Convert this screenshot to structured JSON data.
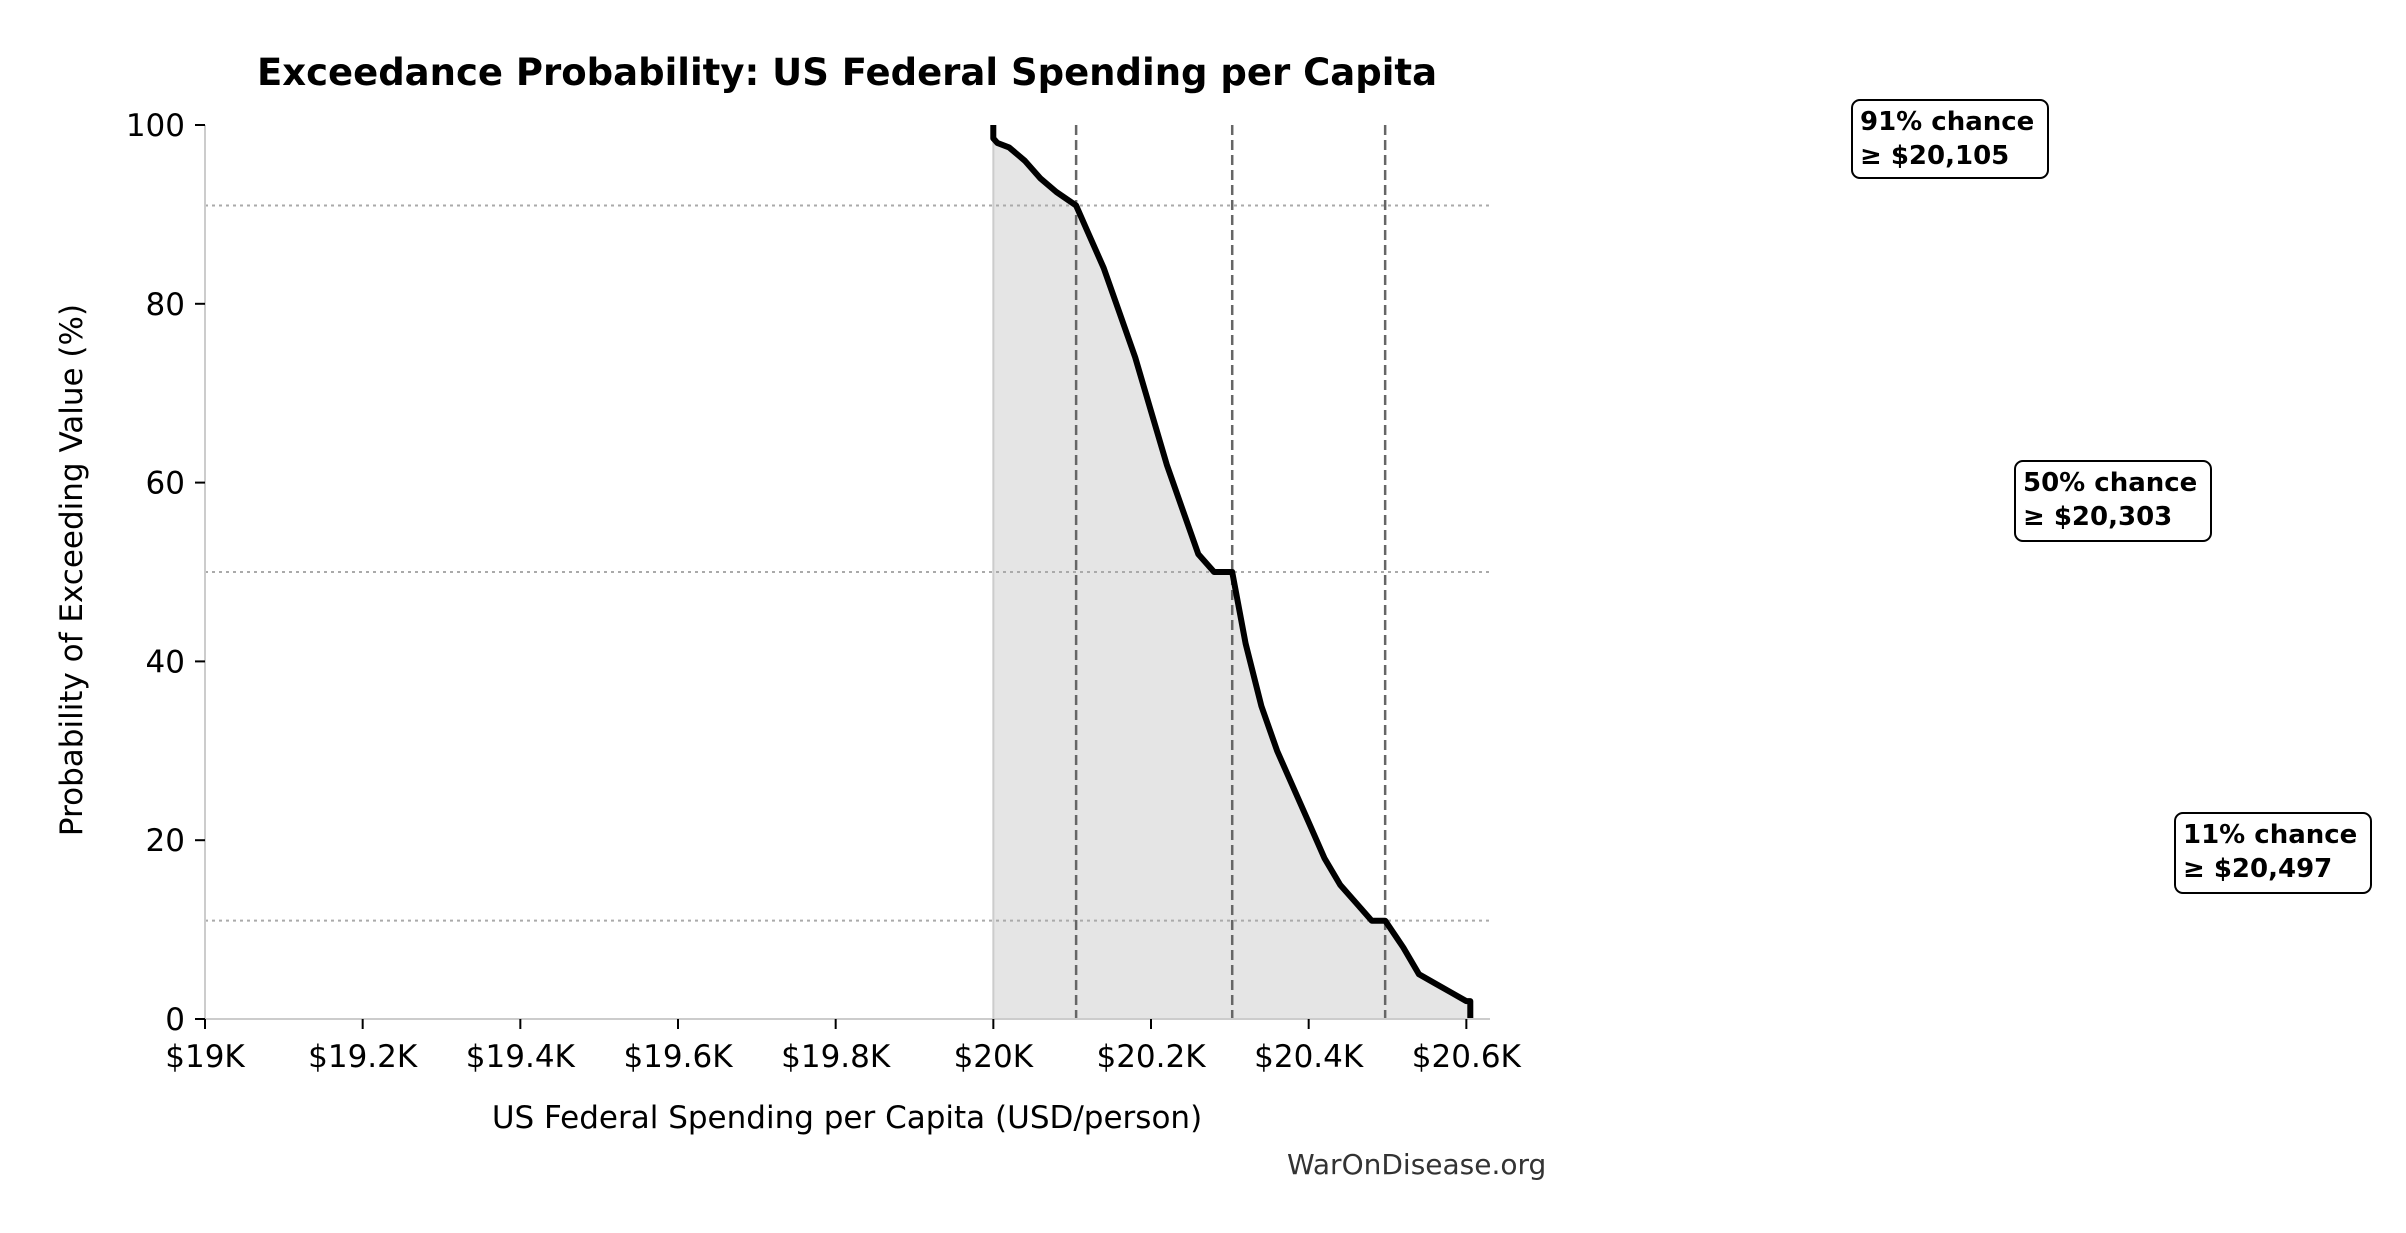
{
  "chart_data": {
    "type": "area",
    "title": "Exceedance Probability: US Federal Spending per Capita",
    "xlabel": "US Federal Spending per Capita (USD/person)",
    "ylabel": "Probability of Exceeding Value (%)",
    "xlim": [
      19000,
      20630
    ],
    "ylim": [
      0,
      100
    ],
    "x_ticks": [
      19000,
      19200,
      19400,
      19600,
      19800,
      20000,
      20200,
      20400,
      20600
    ],
    "x_tick_labels": [
      "$19K",
      "$19.2K",
      "$19.4K",
      "$19.6K",
      "$19.8K",
      "$20K",
      "$20.2K",
      "$20.4K",
      "$20.6K"
    ],
    "y_ticks": [
      0,
      20,
      40,
      60,
      80,
      100
    ],
    "y_tick_labels": [
      "0",
      "20",
      "40",
      "60",
      "80",
      "100"
    ],
    "grid": false,
    "curve_color": "#000000",
    "fill_color": "#e5e5e5",
    "series": [
      {
        "x": [
          20000,
          20000,
          20005,
          20020,
          20040,
          20060,
          20080,
          20105,
          20120,
          20140,
          20160,
          20180,
          20200,
          20220,
          20240,
          20260,
          20280,
          20303,
          20320,
          20340,
          20360,
          20380,
          20400,
          20420,
          20440,
          20460,
          20480,
          20497,
          20520,
          20540,
          20560,
          20580,
          20600,
          20605,
          20605
        ],
        "y": [
          100,
          98.5,
          98,
          97.5,
          96,
          94,
          92.5,
          91,
          88,
          84,
          79,
          74,
          68,
          62,
          57,
          52,
          50,
          50,
          42,
          35,
          30,
          26,
          22,
          18,
          15,
          13,
          11,
          11,
          8,
          5,
          4,
          3,
          2,
          2,
          0
        ]
      }
    ],
    "reference_lines": {
      "vertical_x": [
        20105,
        20303,
        20497
      ],
      "horizontal_y": [
        91,
        50,
        11
      ]
    },
    "annotations": [
      {
        "line1": "91% chance",
        "line2": "≥ $20,105"
      },
      {
        "line1": "50% chance",
        "line2": "≥ $20,303"
      },
      {
        "line1": "11% chance",
        "line2": "≥ $20,497"
      }
    ],
    "source_text": "WarOnDisease.org"
  }
}
